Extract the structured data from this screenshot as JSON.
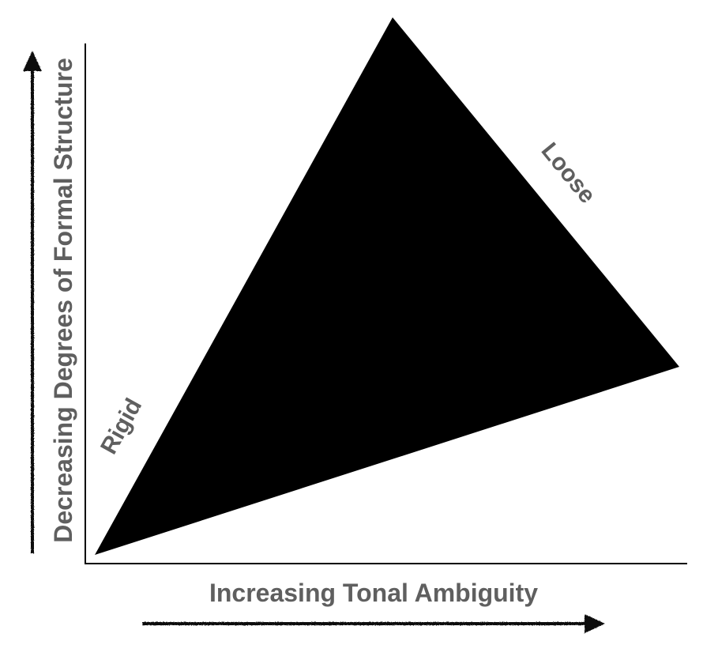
{
  "diagram": {
    "y_axis_label": "Decreasing Degrees of Formal Structure",
    "x_axis_label": "Increasing Tonal Ambiguity",
    "edge_labels": {
      "rigid": "Rigid",
      "loose": "Loose"
    }
  },
  "colors": {
    "triangle_fill": "#000000",
    "axis_line": "#000000",
    "arrow": "#111111",
    "label_text": "#5f5f5f"
  }
}
